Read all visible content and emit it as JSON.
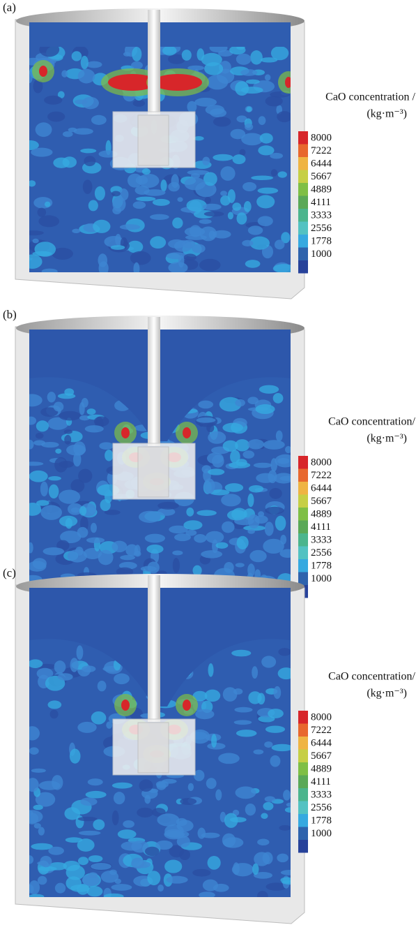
{
  "panels": [
    {
      "label": "(a)",
      "legend": {
        "title": "CaO concentration /",
        "unit": "(kg·m⁻³)",
        "ticks": [
          8000,
          7222,
          6444,
          5667,
          4889,
          4111,
          3333,
          2556,
          1778,
          1000
        ]
      }
    },
    {
      "label": "(b)",
      "legend": {
        "title": "CaO concentration/",
        "unit": "(kg·m⁻³)",
        "ticks": [
          8000,
          7222,
          6444,
          5667,
          4889,
          4111,
          3333,
          2556,
          1778,
          1000
        ]
      }
    },
    {
      "label": "(c)",
      "legend": {
        "title": "CaO concentration/",
        "unit": "(kg·m⁻³)",
        "ticks": [
          8000,
          7222,
          6444,
          5667,
          4889,
          4111,
          3333,
          2556,
          1778,
          1000
        ]
      }
    }
  ]
}
